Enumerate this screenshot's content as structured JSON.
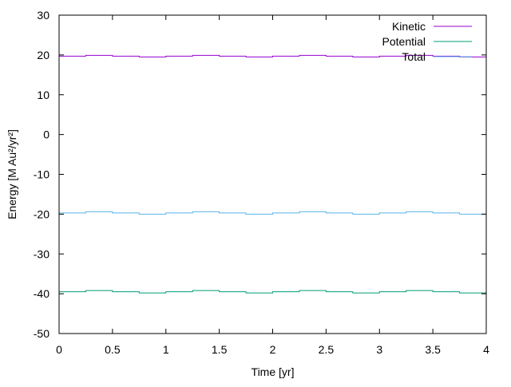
{
  "chart_data": {
    "type": "line",
    "title": "",
    "xlabel": "Time [yr]",
    "ylabel": "Energy [M Au²/yr²]",
    "xlim": [
      0,
      4
    ],
    "ylim": [
      -50,
      30
    ],
    "x_ticks": [
      0,
      0.5,
      1,
      1.5,
      2,
      2.5,
      3,
      3.5,
      4
    ],
    "x_tick_labels": [
      "0",
      "0.5",
      "1",
      "1.5",
      "2",
      "2.5",
      "3",
      "3.5",
      "4"
    ],
    "y_ticks": [
      30,
      20,
      10,
      0,
      -10,
      -20,
      -30,
      -40,
      -50
    ],
    "y_tick_labels": [
      "30",
      "20",
      "10",
      "0",
      "-10",
      "-20",
      "-30",
      "-40",
      "-50"
    ],
    "grid": false,
    "legend_position": "top-right",
    "series": [
      {
        "name": "Kinetic",
        "color": "#9400D3",
        "x": [
          0,
          0.25,
          0.5,
          0.75,
          1,
          1.25,
          1.5,
          1.75,
          2,
          2.25,
          2.5,
          2.75,
          3,
          3.25,
          3.5,
          3.75,
          4
        ],
        "values": [
          19.7,
          19.9,
          19.7,
          19.5,
          19.7,
          19.9,
          19.7,
          19.5,
          19.7,
          19.9,
          19.7,
          19.5,
          19.7,
          19.9,
          19.7,
          19.5,
          19.7
        ]
      },
      {
        "name": "Potential",
        "color": "#009E73",
        "x": [
          0,
          0.25,
          0.5,
          0.75,
          1,
          1.25,
          1.5,
          1.75,
          2,
          2.25,
          2.5,
          2.75,
          3,
          3.25,
          3.5,
          3.75,
          4
        ],
        "values": [
          -39.5,
          -39.2,
          -39.5,
          -39.8,
          -39.5,
          -39.2,
          -39.5,
          -39.8,
          -39.5,
          -39.2,
          -39.5,
          -39.8,
          -39.5,
          -39.2,
          -39.5,
          -39.8,
          -39.5
        ]
      },
      {
        "name": "Total",
        "color": "#56B4E9",
        "x": [
          0,
          0.25,
          0.5,
          0.75,
          1,
          1.25,
          1.5,
          1.75,
          2,
          2.25,
          2.5,
          2.75,
          3,
          3.25,
          3.5,
          3.75,
          4
        ],
        "values": [
          -19.7,
          -19.4,
          -19.7,
          -20.0,
          -19.7,
          -19.4,
          -19.7,
          -20.0,
          -19.7,
          -19.4,
          -19.7,
          -20.0,
          -19.7,
          -19.4,
          -19.7,
          -20.0,
          -19.7
        ]
      }
    ]
  }
}
